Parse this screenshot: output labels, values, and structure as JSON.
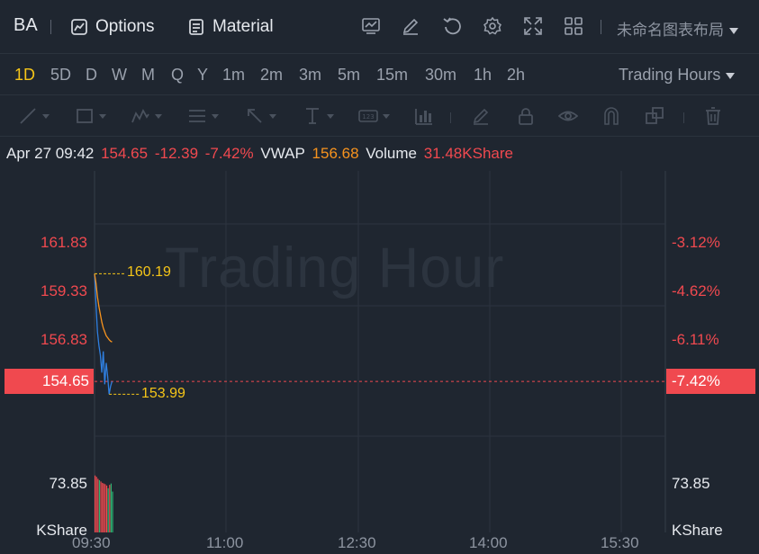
{
  "header": {
    "symbol": "BA",
    "options_label": "Options",
    "material_label": "Material",
    "layout_name": "未命名图表布局",
    "icons": [
      "chart-icon",
      "edit-icon",
      "refresh-icon",
      "settings-icon",
      "fullscreen-icon",
      "grid-icon"
    ]
  },
  "periods": {
    "items": [
      "1D",
      "5D",
      "D",
      "W",
      "M",
      "Q",
      "Y",
      "1m",
      "2m",
      "3m",
      "5m",
      "15m",
      "30m",
      "1h",
      "2h"
    ],
    "active": "1D",
    "session_label": "Trading Hours"
  },
  "info": {
    "datetime": "Apr 27 09:42",
    "price": "154.65",
    "change": "-12.39",
    "change_pct": "-7.42%",
    "vwap_label": "VWAP",
    "vwap_value": "156.68",
    "volume_label": "Volume",
    "volume_value": "31.48KShare"
  },
  "chart_data": {
    "type": "line",
    "watermark": "Trading Hour",
    "price_axis_left": [
      "161.83",
      "159.33",
      "156.83"
    ],
    "price_axis_right": [
      "-3.12%",
      "-4.62%",
      "-6.11%"
    ],
    "current_price": "154.65",
    "current_pct": "-7.42%",
    "high_label": "160.19",
    "low_label": "153.99",
    "volume_axis_left": [
      "73.85",
      "KShare"
    ],
    "volume_axis_right": [
      "73.85",
      "KShare"
    ],
    "x_ticks": [
      "09:30",
      "11:00",
      "12:30",
      "14:00",
      "15:30"
    ],
    "series": [
      {
        "name": "price",
        "color": "#2f7fe0",
        "x": [
          "09:30",
          "09:31",
          "09:32",
          "09:33",
          "09:34",
          "09:35",
          "09:36",
          "09:37",
          "09:38",
          "09:39",
          "09:40",
          "09:41",
          "09:42"
        ],
        "values": [
          160.19,
          158.6,
          157.2,
          156.5,
          156.0,
          155.1,
          156.2,
          154.5,
          155.6,
          154.9,
          153.99,
          154.4,
          154.65
        ]
      },
      {
        "name": "vwap",
        "color": "#f7931e",
        "x": [
          "09:30",
          "09:31",
          "09:32",
          "09:33",
          "09:34",
          "09:35",
          "09:36",
          "09:37",
          "09:38",
          "09:39",
          "09:40",
          "09:41",
          "09:42"
        ],
        "values": [
          160.19,
          159.7,
          159.0,
          158.5,
          158.1,
          157.7,
          157.4,
          157.2,
          157.0,
          156.9,
          156.8,
          156.72,
          156.68
        ]
      }
    ],
    "volume": {
      "x": [
        "09:30",
        "09:31",
        "09:32",
        "09:33",
        "09:34",
        "09:35",
        "09:36",
        "09:37",
        "09:38",
        "09:39",
        "09:40",
        "09:41",
        "09:42"
      ],
      "values": [
        85,
        83,
        80,
        78,
        76,
        74,
        73,
        72,
        70,
        66,
        71,
        73,
        61
      ],
      "direction": [
        "down",
        "down",
        "down",
        "up",
        "down",
        "down",
        "down",
        "down",
        "down",
        "up",
        "down",
        "up",
        "up"
      ],
      "up_color": "#2bb673",
      "down_color": "#f0494f"
    }
  }
}
